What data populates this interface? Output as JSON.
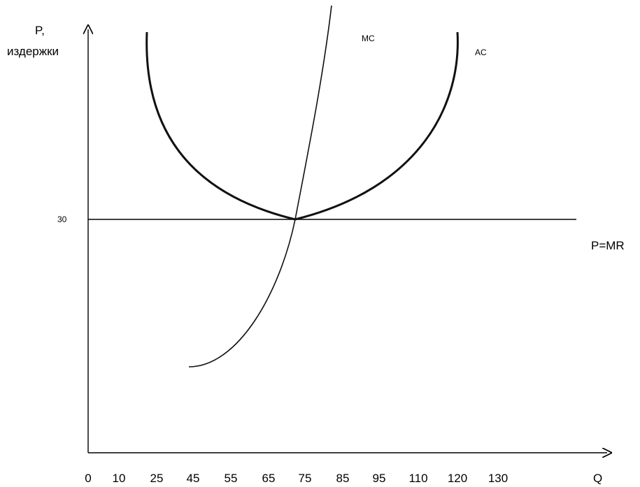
{
  "chart_data": {
    "type": "line",
    "ylabel_line1": "P,",
    "ylabel_line2": "издержки",
    "xlabel": "Q",
    "x_ticks": [
      "0",
      "10",
      "25",
      "45",
      "55",
      "65",
      "75",
      "85",
      "95",
      "110",
      "120",
      "130"
    ],
    "y_ticks": [
      {
        "value": 30,
        "label": "30"
      }
    ],
    "price_line": {
      "label": "P=MR",
      "value": 30
    },
    "series": [
      {
        "name": "MC",
        "label": "MC",
        "shape": "upward-sloping",
        "min_point": {
          "q": 45,
          "p": 8
        },
        "crosses_price_at_q": 71,
        "end": {
          "q": 80,
          "p": 64
        }
      },
      {
        "name": "AC",
        "label": "AC",
        "shape": "u-shaped",
        "min_point": {
          "q": 71,
          "p": 30
        },
        "start": {
          "q": 21,
          "p": 56
        },
        "end": {
          "q": 117,
          "p": 56
        }
      }
    ],
    "grid": false,
    "colors": {
      "curves": "#111111",
      "axes": "#000000"
    }
  }
}
